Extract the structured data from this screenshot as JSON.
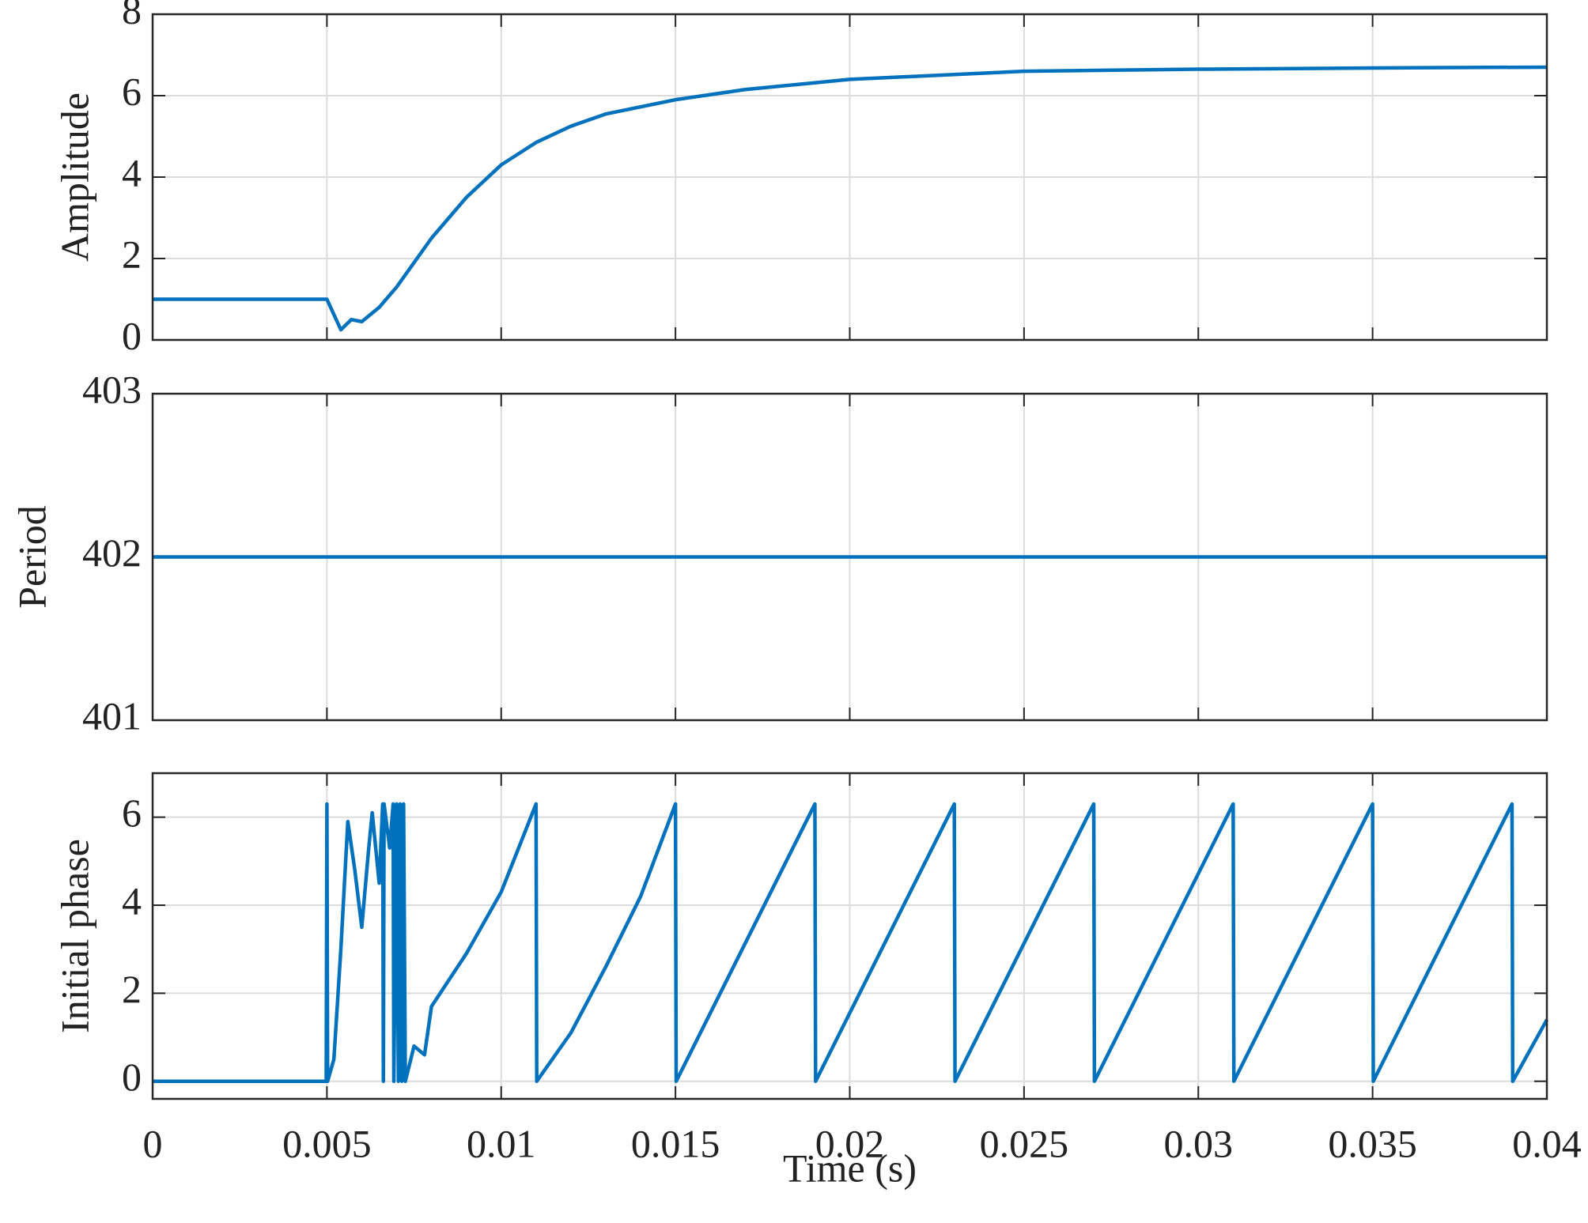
{
  "chart_data": [
    {
      "type": "line",
      "ylabel": "Amplitude",
      "color": "#0072bd",
      "grid": true,
      "xlim": [
        0,
        0.04
      ],
      "xticks": [
        0,
        0.005,
        0.01,
        0.015,
        0.02,
        0.025,
        0.03,
        0.035,
        0.04
      ],
      "ylim": [
        0,
        8
      ],
      "yticks": [
        0,
        2,
        4,
        6,
        8
      ],
      "x": [
        0,
        0.005,
        0.0054,
        0.0057,
        0.006,
        0.0065,
        0.007,
        0.008,
        0.009,
        0.01,
        0.011,
        0.012,
        0.013,
        0.015,
        0.017,
        0.02,
        0.025,
        0.03,
        0.035,
        0.04
      ],
      "values": [
        1,
        1,
        0.25,
        0.5,
        0.45,
        0.8,
        1.3,
        2.5,
        3.5,
        4.3,
        4.85,
        5.25,
        5.55,
        5.9,
        6.15,
        6.4,
        6.6,
        6.65,
        6.68,
        6.7
      ]
    },
    {
      "type": "line",
      "ylabel": "Period",
      "color": "#0072bd",
      "grid": true,
      "xlim": [
        0,
        0.04
      ],
      "xticks": [
        0,
        0.005,
        0.01,
        0.015,
        0.02,
        0.025,
        0.03,
        0.035,
        0.04
      ],
      "ylim": [
        401,
        403
      ],
      "yticks": [
        401,
        402,
        403
      ],
      "x": [
        0,
        0.04
      ],
      "values": [
        402,
        402
      ]
    },
    {
      "type": "line",
      "ylabel": "Initial phase",
      "xlabel": "Time (s)",
      "color": "#0072bd",
      "grid": true,
      "xlim": [
        0,
        0.04
      ],
      "xticks": [
        0,
        0.005,
        0.01,
        0.015,
        0.02,
        0.025,
        0.03,
        0.035,
        0.04
      ],
      "ylim": [
        -0.4,
        7
      ],
      "yticks": [
        0,
        2,
        4,
        6
      ],
      "x": [
        0,
        0.00498,
        0.005,
        0.00502,
        0.0052,
        0.0054,
        0.0056,
        0.0058,
        0.006,
        0.0062,
        0.0063,
        0.0065,
        0.0066,
        0.00662,
        0.00664,
        0.0068,
        0.0069,
        0.00692,
        0.007,
        0.00705,
        0.0071,
        0.00715,
        0.0072,
        0.00725,
        0.0075,
        0.0078,
        0.008,
        0.0085,
        0.009,
        0.0095,
        0.01,
        0.0105,
        0.011,
        0.01102,
        0.012,
        0.013,
        0.014,
        0.015,
        0.01502,
        0.019,
        0.01902,
        0.023,
        0.02302,
        0.027,
        0.02702,
        0.031,
        0.03102,
        0.035,
        0.03502,
        0.039,
        0.03902,
        0.04
      ],
      "values": [
        0,
        0,
        6.3,
        0,
        0.5,
        3,
        5.9,
        4.8,
        3.5,
        5.3,
        6.1,
        4.5,
        6.3,
        0,
        6.3,
        5.3,
        6.3,
        0,
        6.3,
        0,
        6.3,
        0,
        6.3,
        0,
        0.8,
        0.6,
        1.7,
        2.3,
        2.9,
        3.6,
        4.3,
        5.3,
        6.3,
        0,
        1.1,
        2.6,
        4.2,
        6.3,
        0,
        6.3,
        0,
        6.3,
        0,
        6.3,
        0,
        6.3,
        0,
        6.3,
        0,
        6.3,
        0,
        1.4
      ]
    }
  ]
}
